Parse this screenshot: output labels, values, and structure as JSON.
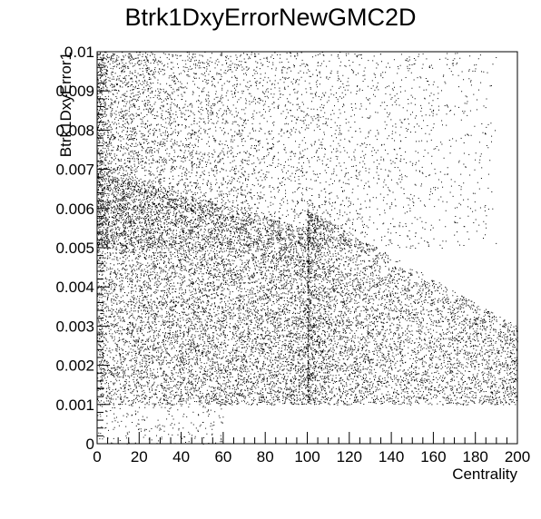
{
  "chart_data": {
    "type": "scatter",
    "title": "Btrk1DxyErrorNewGMC2D",
    "xlabel": "Centrality",
    "ylabel": "Btrk1DxyError1",
    "xlim": [
      0,
      200
    ],
    "ylim": [
      0,
      0.01
    ],
    "x_ticks": [
      "0",
      "20",
      "40",
      "60",
      "80",
      "100",
      "120",
      "140",
      "160",
      "180",
      "200"
    ],
    "y_ticks": [
      "0",
      "0.001",
      "0.002",
      "0.003",
      "0.004",
      "0.005",
      "0.006",
      "0.007",
      "0.008",
      "0.009",
      "0.01"
    ],
    "grid": false,
    "legend": "none",
    "marker_color": "#000000",
    "density_profile": {
      "description_x": "x = centrality",
      "core": {
        "x_range": [
          0,
          100
        ],
        "y_range": [
          0.001,
          0.0055
        ]
      },
      "tail": {
        "x_range": [
          100,
          200
        ],
        "y_range": [
          0.001,
          0.01
        ]
      },
      "sparse_below": {
        "x_range": [
          0,
          60
        ],
        "y_range": [
          0,
          0.001
        ]
      }
    }
  }
}
